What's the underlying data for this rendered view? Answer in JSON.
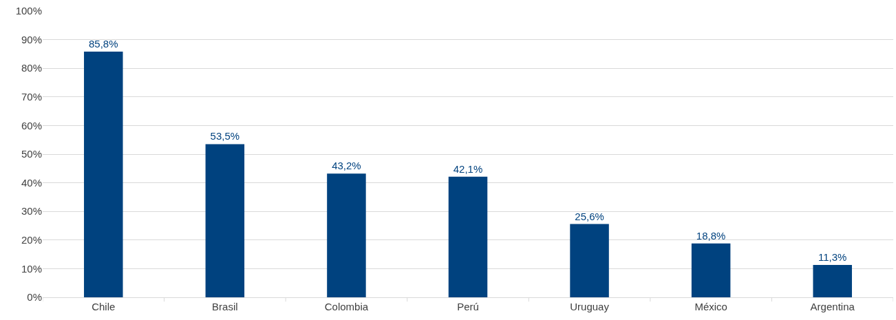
{
  "chart_data": {
    "type": "bar",
    "categories": [
      "Chile",
      "Brasil",
      "Colombia",
      "Perú",
      "Uruguay",
      "México",
      "Argentina"
    ],
    "values": [
      85.8,
      53.5,
      43.2,
      42.1,
      25.6,
      18.8,
      11.3
    ],
    "value_labels": [
      "85,8%",
      "53,5%",
      "43,2%",
      "42,1%",
      "25,6%",
      "18,8%",
      "11,3%"
    ],
    "color": "#00427f",
    "ylim": [
      0,
      100
    ],
    "yticks": [
      {
        "value": 0,
        "label": "0%"
      },
      {
        "value": 10,
        "label": "10%"
      },
      {
        "value": 20,
        "label": "20%"
      },
      {
        "value": 30,
        "label": "30%"
      },
      {
        "value": 40,
        "label": "40%"
      },
      {
        "value": 50,
        "label": "50%"
      },
      {
        "value": 60,
        "label": "60%"
      },
      {
        "value": 70,
        "label": "70%"
      },
      {
        "value": 80,
        "label": "80%"
      },
      {
        "value": 90,
        "label": "90%"
      },
      {
        "value": 100,
        "label": "100%"
      }
    ],
    "grid": "y"
  }
}
